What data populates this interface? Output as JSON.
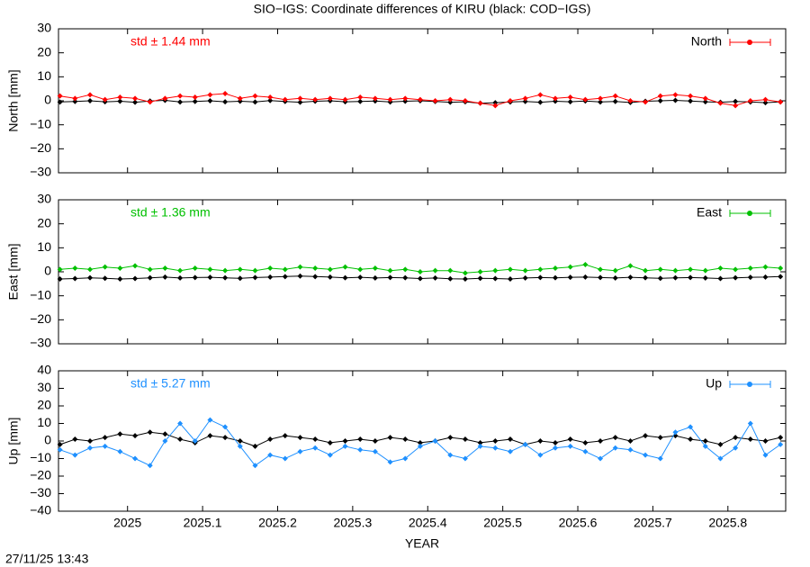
{
  "footer": "27/11/25 13:43",
  "chart_data": [
    {
      "type": "line",
      "title": "SIO−IGS: Coordinate differences of KIRU (black: COD−IGS)",
      "ylabel": "North [mm]",
      "annotation": "std ± 1.44 mm",
      "x": [
        2024.91,
        2024.93,
        2024.95,
        2024.97,
        2024.99,
        2025.01,
        2025.03,
        2025.05,
        2025.07,
        2025.09,
        2025.11,
        2025.13,
        2025.15,
        2025.17,
        2025.19,
        2025.21,
        2025.23,
        2025.25,
        2025.27,
        2025.29,
        2025.31,
        2025.33,
        2025.35,
        2025.37,
        2025.39,
        2025.41,
        2025.43,
        2025.45,
        2025.47,
        2025.49,
        2025.51,
        2025.53,
        2025.55,
        2025.57,
        2025.59,
        2025.61,
        2025.63,
        2025.65,
        2025.67,
        2025.69,
        2025.71,
        2025.73,
        2025.75,
        2025.77,
        2025.79,
        2025.81,
        2025.83,
        2025.85,
        2025.87
      ],
      "series": [
        {
          "color": "#000000",
          "values": [
            -0.5,
            -0.3,
            0,
            -0.4,
            -0.2,
            -0.6,
            -0.1,
            0.2,
            -0.5,
            -0.3,
            0,
            -0.4,
            -0.2,
            -0.5,
            0.1,
            -0.3,
            -0.6,
            -0.2,
            0,
            -0.4,
            -0.3,
            -0.1,
            -0.5,
            -0.2,
            0,
            -0.3,
            -0.6,
            -0.4,
            -1,
            -0.8,
            -0.5,
            -0.3,
            -0.6,
            -0.2,
            -0.4,
            -0.1,
            -0.5,
            -0.3,
            -0.7,
            -0.2,
            0,
            0.2,
            -0.1,
            -0.4,
            -0.6,
            -0.3,
            -0.5,
            -0.8,
            -0.4
          ]
        },
        {
          "name": "North",
          "color": "#ff0000",
          "values": [
            2,
            1,
            2.5,
            0.5,
            1.5,
            1,
            -0.5,
            1,
            2,
            1.5,
            2.5,
            3,
            1,
            2,
            1.5,
            0.5,
            1,
            0.5,
            1,
            0.5,
            1.5,
            1,
            0.5,
            1,
            0.5,
            0,
            0.5,
            0,
            -1,
            -2,
            0,
            1,
            2.5,
            1,
            1.5,
            0.5,
            1,
            2,
            0,
            -0.5,
            2,
            2.5,
            2,
            1,
            -1,
            -2,
            0,
            0.5,
            -0.5
          ]
        }
      ],
      "xlim": [
        2024.908,
        2025.877
      ],
      "xticks": [
        2025,
        2025.1,
        2025.2,
        2025.3,
        2025.4,
        2025.5,
        2025.6,
        2025.7,
        2025.8
      ],
      "ylim": [
        -30,
        30
      ],
      "yticks": [
        {
          "value": -30,
          "label": "−30"
        },
        {
          "value": -20,
          "label": "−20"
        },
        {
          "value": -10,
          "label": "−10"
        },
        0,
        10,
        20,
        30
      ]
    },
    {
      "type": "line",
      "ylabel": "East [mm]",
      "annotation": "std ± 1.36 mm",
      "x": [
        2024.91,
        2024.93,
        2024.95,
        2024.97,
        2024.99,
        2025.01,
        2025.03,
        2025.05,
        2025.07,
        2025.09,
        2025.11,
        2025.13,
        2025.15,
        2025.17,
        2025.19,
        2025.21,
        2025.23,
        2025.25,
        2025.27,
        2025.29,
        2025.31,
        2025.33,
        2025.35,
        2025.37,
        2025.39,
        2025.41,
        2025.43,
        2025.45,
        2025.47,
        2025.49,
        2025.51,
        2025.53,
        2025.55,
        2025.57,
        2025.59,
        2025.61,
        2025.63,
        2025.65,
        2025.67,
        2025.69,
        2025.71,
        2025.73,
        2025.75,
        2025.77,
        2025.79,
        2025.81,
        2025.83,
        2025.85,
        2025.87
      ],
      "series": [
        {
          "color": "#000000",
          "values": [
            -3,
            -2.8,
            -2.5,
            -2.7,
            -3,
            -2.8,
            -2.5,
            -2.2,
            -2.6,
            -2.4,
            -2.3,
            -2.5,
            -2.7,
            -2.4,
            -2.2,
            -2,
            -1.8,
            -2,
            -2.2,
            -2.5,
            -2.3,
            -2.6,
            -2.4,
            -2.5,
            -2.8,
            -2.6,
            -2.9,
            -3,
            -2.7,
            -2.8,
            -3,
            -2.6,
            -2.4,
            -2.5,
            -2.3,
            -2.2,
            -2.4,
            -2.6,
            -2.3,
            -2.5,
            -2.7,
            -2.5,
            -2.4,
            -2.6,
            -2.8,
            -2.5,
            -2.3,
            -2.2,
            -2
          ]
        },
        {
          "name": "East",
          "color": "#00c000",
          "values": [
            1,
            1.5,
            1,
            2,
            1.5,
            2.5,
            1,
            1.5,
            0.5,
            1.5,
            1,
            0.5,
            1,
            0.5,
            1.5,
            1,
            2,
            1.5,
            1,
            2,
            1,
            1.5,
            0.5,
            1,
            0,
            0.5,
            0.5,
            -0.5,
            0,
            0.5,
            1,
            0.5,
            1,
            1.5,
            2,
            3,
            1,
            0.5,
            2.5,
            0.5,
            1,
            0.5,
            1,
            0.5,
            1.5,
            1,
            1.5,
            2,
            1.5
          ]
        }
      ],
      "xlim": [
        2024.908,
        2025.877
      ],
      "xticks": [
        2025,
        2025.1,
        2025.2,
        2025.3,
        2025.4,
        2025.5,
        2025.6,
        2025.7,
        2025.8
      ],
      "ylim": [
        -30,
        30
      ],
      "yticks": [
        {
          "value": -30,
          "label": "−30"
        },
        {
          "value": -20,
          "label": "−20"
        },
        {
          "value": -10,
          "label": "−10"
        },
        0,
        10,
        20,
        30
      ]
    },
    {
      "type": "line",
      "ylabel": "Up [mm]",
      "xlabel": "YEAR",
      "annotation": "std ± 5.27 mm",
      "x": [
        2024.91,
        2024.93,
        2024.95,
        2024.97,
        2024.99,
        2025.01,
        2025.03,
        2025.05,
        2025.07,
        2025.09,
        2025.11,
        2025.13,
        2025.15,
        2025.17,
        2025.19,
        2025.21,
        2025.23,
        2025.25,
        2025.27,
        2025.29,
        2025.31,
        2025.33,
        2025.35,
        2025.37,
        2025.39,
        2025.41,
        2025.43,
        2025.45,
        2025.47,
        2025.49,
        2025.51,
        2025.53,
        2025.55,
        2025.57,
        2025.59,
        2025.61,
        2025.63,
        2025.65,
        2025.67,
        2025.69,
        2025.71,
        2025.73,
        2025.75,
        2025.77,
        2025.79,
        2025.81,
        2025.83,
        2025.85,
        2025.87
      ],
      "series": [
        {
          "color": "#000000",
          "values": [
            -2,
            1,
            0,
            2,
            4,
            3,
            5,
            4,
            1,
            -1,
            3,
            2,
            0,
            -3,
            1,
            3,
            2,
            1,
            -1,
            0,
            1,
            0,
            2,
            1,
            -1,
            0,
            2,
            1,
            -1,
            0,
            1,
            -2,
            0,
            -1,
            1,
            -1,
            0,
            2,
            0,
            3,
            2,
            3,
            1,
            0,
            -2,
            2,
            1,
            0,
            2
          ]
        },
        {
          "name": "Up",
          "color": "#1e90ff",
          "values": [
            -5,
            -8,
            -4,
            -3,
            -6,
            -10,
            -14,
            0,
            10,
            0,
            12,
            8,
            -3,
            -14,
            -8,
            -10,
            -6,
            -4,
            -8,
            -3,
            -5,
            -6,
            -12,
            -10,
            -3,
            0,
            -8,
            -10,
            -3,
            -4,
            -6,
            -2,
            -8,
            -4,
            -3,
            -6,
            -10,
            -4,
            -5,
            -8,
            -10,
            5,
            8,
            -3,
            -10,
            -4,
            10,
            -8,
            -2
          ]
        }
      ],
      "xlim": [
        2024.908,
        2025.877
      ],
      "xticks": [
        2025,
        2025.1,
        2025.2,
        2025.3,
        2025.4,
        2025.5,
        2025.6,
        2025.7,
        2025.8
      ],
      "ylim": [
        -40,
        40
      ],
      "yticks": [
        {
          "value": -40,
          "label": "−40"
        },
        {
          "value": -30,
          "label": "−30"
        },
        {
          "value": -20,
          "label": "−20"
        },
        {
          "value": -10,
          "label": "−10"
        },
        0,
        10,
        20,
        30,
        40
      ]
    }
  ]
}
